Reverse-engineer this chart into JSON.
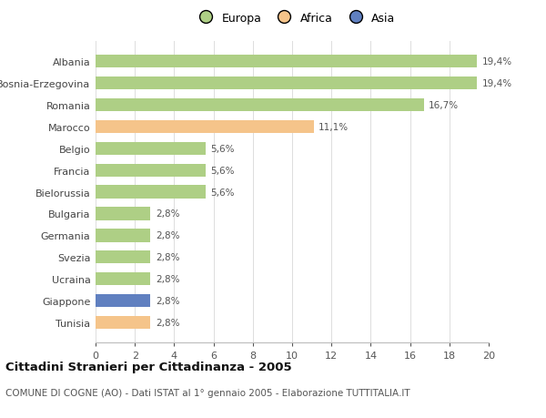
{
  "categories": [
    "Albania",
    "Bosnia-Erzegovina",
    "Romania",
    "Marocco",
    "Belgio",
    "Francia",
    "Bielorussia",
    "Bulgaria",
    "Germania",
    "Svezia",
    "Ucraina",
    "Giappone",
    "Tunisia"
  ],
  "values": [
    19.4,
    19.4,
    16.7,
    11.1,
    5.6,
    5.6,
    5.6,
    2.8,
    2.8,
    2.8,
    2.8,
    2.8,
    2.8
  ],
  "labels": [
    "19,4%",
    "19,4%",
    "16,7%",
    "11,1%",
    "5,6%",
    "5,6%",
    "5,6%",
    "2,8%",
    "2,8%",
    "2,8%",
    "2,8%",
    "2,8%",
    "2,8%"
  ],
  "continent": [
    "Europa",
    "Europa",
    "Europa",
    "Africa",
    "Europa",
    "Europa",
    "Europa",
    "Europa",
    "Europa",
    "Europa",
    "Europa",
    "Asia",
    "Africa"
  ],
  "colors": {
    "Europa": "#aecf85",
    "Africa": "#f5c48a",
    "Asia": "#6080c0"
  },
  "legend_entries": [
    "Europa",
    "Africa",
    "Asia"
  ],
  "legend_colors": [
    "#aecf85",
    "#f5c48a",
    "#6080c0"
  ],
  "title": "Cittadini Stranieri per Cittadinanza - 2005",
  "subtitle": "COMUNE DI COGNE (AO) - Dati ISTAT al 1° gennaio 2005 - Elaborazione TUTTITALIA.IT",
  "xlim": [
    0,
    20
  ],
  "xticks": [
    0,
    2,
    4,
    6,
    8,
    10,
    12,
    14,
    16,
    18,
    20
  ],
  "background_color": "#ffffff",
  "grid_color": "#dddddd"
}
